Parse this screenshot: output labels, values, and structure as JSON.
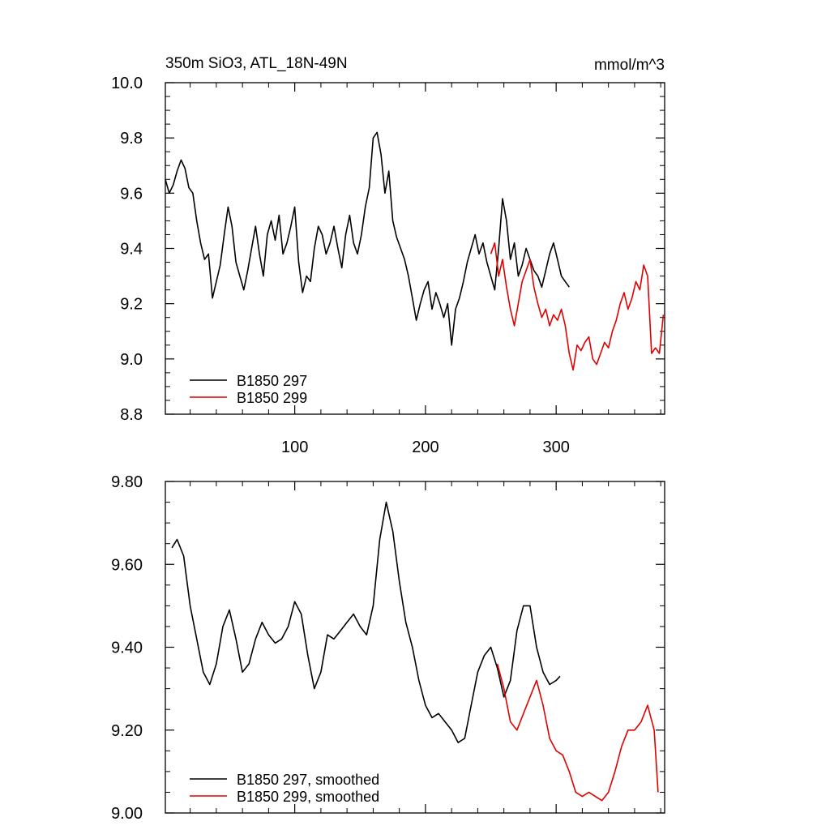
{
  "chart_data": [
    {
      "type": "line",
      "title": "350m SiO3, ATL_18N-49N",
      "units": "mmol/m^3",
      "xlim": [
        1,
        383
      ],
      "ylim": [
        8.8,
        10.0
      ],
      "yticks": [
        "8.8",
        "9.0",
        "9.2",
        "9.4",
        "9.6",
        "9.8",
        "10.0"
      ],
      "xticks": [
        "100",
        "200",
        "300"
      ],
      "legend_position": "bottom-left",
      "series": [
        {
          "name": "B1850 297",
          "color": "#000000",
          "x": [
            1,
            4,
            7,
            10,
            13,
            16,
            19,
            22,
            25,
            28,
            31,
            34,
            37,
            40,
            43,
            46,
            49,
            52,
            55,
            58,
            61,
            64,
            67,
            70,
            73,
            76,
            79,
            82,
            85,
            88,
            91,
            94,
            97,
            100,
            103,
            106,
            109,
            112,
            115,
            118,
            121,
            124,
            127,
            130,
            133,
            136,
            139,
            142,
            145,
            148,
            151,
            154,
            157,
            160,
            163,
            166,
            169,
            172,
            175,
            178,
            181,
            184,
            187,
            190,
            193,
            196,
            199,
            202,
            205,
            208,
            211,
            214,
            217,
            220,
            223,
            226,
            229,
            232,
            235,
            238,
            241,
            244,
            247,
            250,
            253,
            256,
            259,
            262,
            265,
            268,
            271,
            274,
            277,
            280,
            283,
            286,
            289,
            292,
            295,
            298,
            301,
            304,
            307,
            310
          ],
          "y": [
            9.65,
            9.6,
            9.63,
            9.68,
            9.72,
            9.69,
            9.62,
            9.6,
            9.5,
            9.42,
            9.36,
            9.38,
            9.22,
            9.28,
            9.34,
            9.45,
            9.55,
            9.48,
            9.35,
            9.3,
            9.25,
            9.32,
            9.4,
            9.48,
            9.38,
            9.3,
            9.45,
            9.5,
            9.43,
            9.52,
            9.38,
            9.42,
            9.48,
            9.55,
            9.35,
            9.24,
            9.3,
            9.28,
            9.4,
            9.48,
            9.45,
            9.38,
            9.42,
            9.48,
            9.4,
            9.33,
            9.45,
            9.52,
            9.42,
            9.38,
            9.45,
            9.55,
            9.62,
            9.8,
            9.82,
            9.74,
            9.6,
            9.68,
            9.5,
            9.44,
            9.4,
            9.36,
            9.3,
            9.22,
            9.14,
            9.2,
            9.25,
            9.28,
            9.18,
            9.24,
            9.2,
            9.15,
            9.2,
            9.05,
            9.18,
            9.22,
            9.28,
            9.35,
            9.4,
            9.45,
            9.38,
            9.42,
            9.35,
            9.3,
            9.25,
            9.4,
            9.58,
            9.5,
            9.36,
            9.42,
            9.3,
            9.34,
            9.4,
            9.36,
            9.32,
            9.3,
            9.26,
            9.32,
            9.38,
            9.42,
            9.36,
            9.3,
            9.28,
            9.26
          ]
        },
        {
          "name": "B1850 299",
          "color": "#e00000",
          "x": [
            250,
            253,
            256,
            259,
            262,
            265,
            268,
            271,
            274,
            277,
            280,
            283,
            286,
            289,
            292,
            295,
            298,
            301,
            304,
            307,
            310,
            313,
            316,
            319,
            322,
            325,
            328,
            331,
            334,
            337,
            340,
            343,
            346,
            349,
            352,
            355,
            358,
            361,
            364,
            367,
            370,
            373,
            376,
            379,
            382
          ],
          "y": [
            9.38,
            9.42,
            9.3,
            9.36,
            9.26,
            9.18,
            9.12,
            9.2,
            9.28,
            9.32,
            9.36,
            9.26,
            9.2,
            9.15,
            9.18,
            9.12,
            9.16,
            9.14,
            9.18,
            9.12,
            9.02,
            8.96,
            9.05,
            9.03,
            9.06,
            9.08,
            9.0,
            8.98,
            9.02,
            9.06,
            9.04,
            9.1,
            9.14,
            9.2,
            9.24,
            9.18,
            9.22,
            9.28,
            9.25,
            9.34,
            9.3,
            9.02,
            9.04,
            9.02,
            9.16
          ]
        }
      ]
    },
    {
      "type": "line",
      "xlim": [
        1,
        383
      ],
      "ylim": [
        9.0,
        9.8
      ],
      "yticks": [
        "9.00",
        "9.20",
        "9.40",
        "9.60",
        "9.80"
      ],
      "legend_position": "bottom-left",
      "series": [
        {
          "name": "B1850 297, smoothed",
          "color": "#000000",
          "x": [
            6,
            10,
            15,
            20,
            25,
            30,
            35,
            40,
            45,
            50,
            55,
            60,
            65,
            70,
            75,
            80,
            85,
            90,
            95,
            100,
            105,
            110,
            115,
            120,
            125,
            130,
            135,
            140,
            145,
            150,
            155,
            160,
            165,
            170,
            175,
            180,
            185,
            190,
            195,
            200,
            205,
            210,
            215,
            220,
            225,
            230,
            235,
            240,
            245,
            250,
            255,
            260,
            265,
            270,
            275,
            280,
            285,
            290,
            295,
            300,
            303
          ],
          "y": [
            9.64,
            9.66,
            9.62,
            9.5,
            9.42,
            9.34,
            9.31,
            9.36,
            9.45,
            9.49,
            9.42,
            9.34,
            9.36,
            9.42,
            9.46,
            9.43,
            9.41,
            9.42,
            9.45,
            9.51,
            9.48,
            9.38,
            9.3,
            9.34,
            9.43,
            9.42,
            9.44,
            9.46,
            9.48,
            9.45,
            9.43,
            9.5,
            9.66,
            9.75,
            9.68,
            9.56,
            9.46,
            9.4,
            9.32,
            9.26,
            9.23,
            9.24,
            9.22,
            9.2,
            9.17,
            9.18,
            9.26,
            9.34,
            9.38,
            9.4,
            9.35,
            9.28,
            9.32,
            9.44,
            9.5,
            9.5,
            9.4,
            9.34,
            9.31,
            9.32,
            9.33
          ]
        },
        {
          "name": "B1850 299, smoothed",
          "color": "#e00000",
          "x": [
            255,
            260,
            265,
            270,
            275,
            280,
            285,
            290,
            295,
            300,
            305,
            310,
            315,
            320,
            325,
            330,
            335,
            340,
            345,
            350,
            355,
            360,
            365,
            370,
            375,
            378
          ],
          "y": [
            9.36,
            9.3,
            9.22,
            9.2,
            9.24,
            9.28,
            9.32,
            9.26,
            9.18,
            9.15,
            9.14,
            9.1,
            9.05,
            9.04,
            9.05,
            9.04,
            9.03,
            9.05,
            9.1,
            9.16,
            9.2,
            9.2,
            9.22,
            9.26,
            9.2,
            9.05
          ]
        }
      ]
    }
  ]
}
